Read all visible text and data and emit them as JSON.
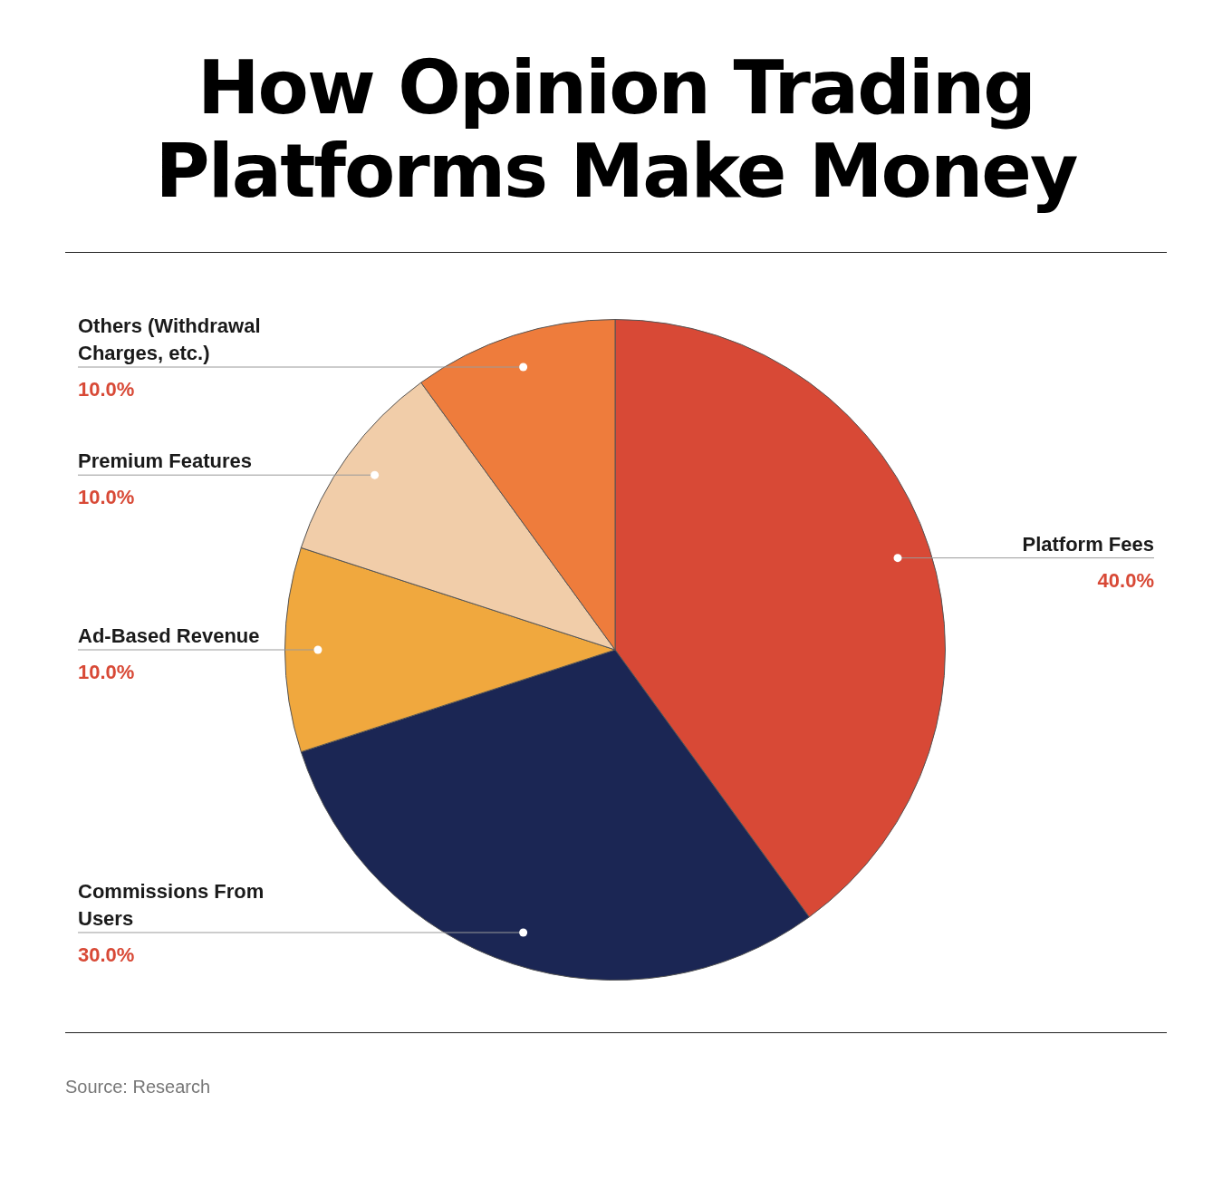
{
  "chart_data": {
    "type": "pie",
    "title": "How Opinion Trading Platforms Make Money",
    "categories": [
      "Platform Fees",
      "Commissions From Users",
      "Ad-Based Revenue",
      "Premium Features",
      "Others (Withdrawal Charges, etc.)"
    ],
    "values": [
      40,
      30,
      10,
      10,
      10
    ],
    "colors": [
      "#d84936",
      "#1b2654",
      "#f0a83e",
      "#f1cda9",
      "#ee7c3c"
    ],
    "value_labels": [
      "40.0%",
      "30.0%",
      "10.0%",
      "10.0%",
      "10.0%"
    ],
    "annotations": [
      "Source: Research"
    ]
  }
}
